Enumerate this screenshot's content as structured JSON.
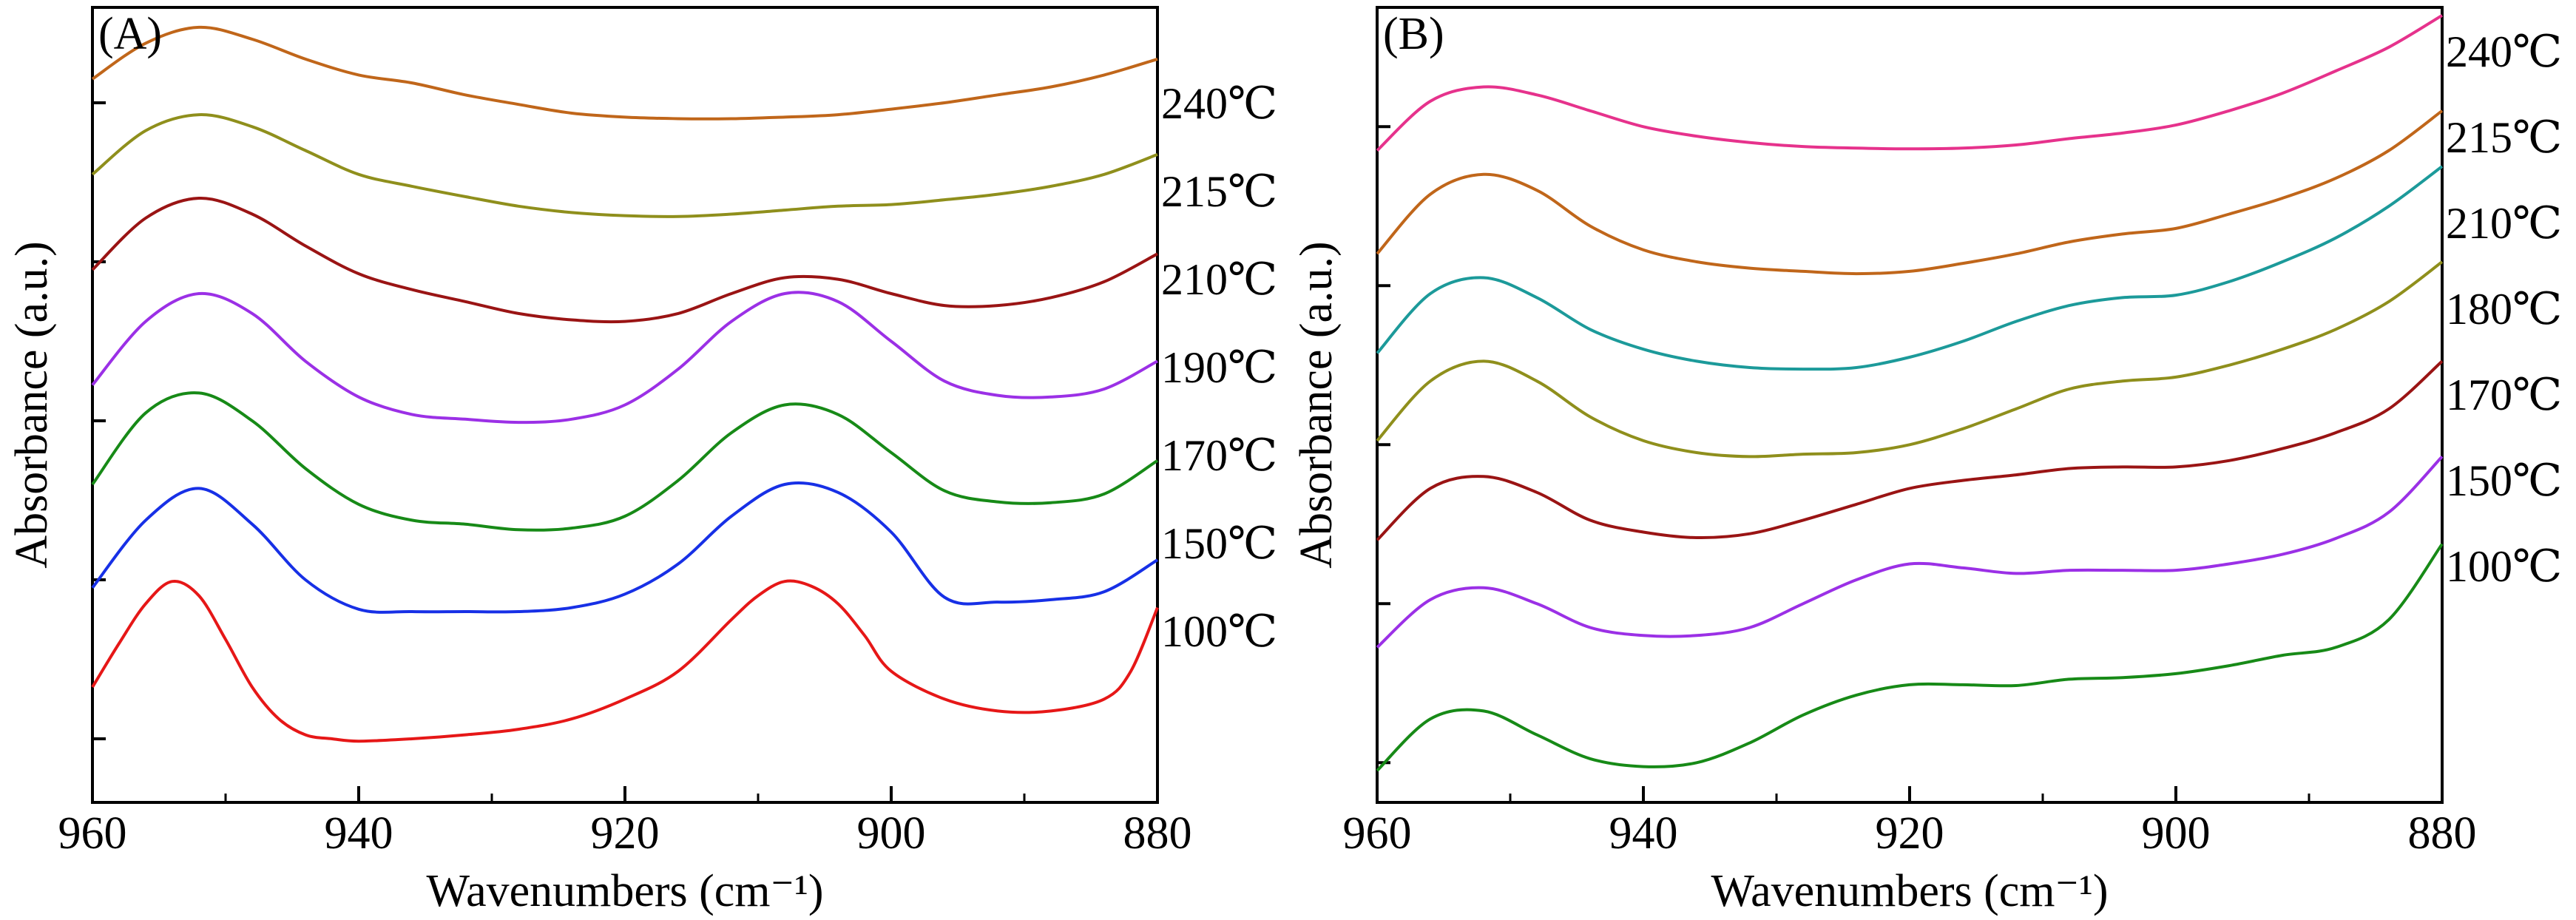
{
  "chart_data": [
    {
      "panel_letter": "(A)",
      "type": "line",
      "xlabel": "Wavenumbers (cm⁻¹)",
      "ylabel": "Absorbance (a.u.)",
      "xlim": [
        960,
        880
      ],
      "x_reversed": true,
      "xticks": [
        960,
        940,
        920,
        900,
        880
      ],
      "ylim": [
        0,
        10
      ],
      "y_units": "arbitrary (stacked offsets)",
      "series": [
        {
          "name": "240℃",
          "color": "#c0661a",
          "x": [
            960,
            956,
            952,
            948,
            944,
            940,
            936,
            932,
            928,
            924,
            920,
            916,
            912,
            908,
            904,
            900,
            896,
            892,
            888,
            884,
            880
          ],
          "y": [
            9.1,
            9.55,
            9.75,
            9.6,
            9.35,
            9.15,
            9.05,
            8.9,
            8.78,
            8.67,
            8.62,
            8.6,
            8.6,
            8.62,
            8.65,
            8.72,
            8.8,
            8.9,
            9.0,
            9.15,
            9.35
          ]
        },
        {
          "name": "215℃",
          "color": "#8f8f1c",
          "x": [
            960,
            956,
            952,
            948,
            944,
            940,
            936,
            932,
            928,
            924,
            920,
            916,
            912,
            908,
            904,
            900,
            896,
            892,
            888,
            884,
            880
          ],
          "y": [
            7.9,
            8.45,
            8.65,
            8.5,
            8.2,
            7.9,
            7.75,
            7.62,
            7.5,
            7.42,
            7.38,
            7.37,
            7.4,
            7.45,
            7.5,
            7.52,
            7.58,
            7.65,
            7.75,
            7.9,
            8.15
          ]
        },
        {
          "name": "210℃",
          "color": "#9a1414",
          "x": [
            960,
            956,
            952,
            948,
            944,
            940,
            936,
            932,
            928,
            924,
            920,
            916,
            912,
            908,
            904,
            900,
            896,
            892,
            888,
            884,
            880
          ],
          "y": [
            6.7,
            7.35,
            7.6,
            7.4,
            7.0,
            6.65,
            6.45,
            6.3,
            6.15,
            6.07,
            6.05,
            6.15,
            6.4,
            6.6,
            6.58,
            6.4,
            6.25,
            6.25,
            6.35,
            6.55,
            6.9
          ]
        },
        {
          "name": "190℃",
          "color": "#9b30e6",
          "x": [
            960,
            956,
            952,
            948,
            944,
            940,
            936,
            932,
            928,
            924,
            920,
            916,
            912,
            908,
            904,
            900,
            896,
            892,
            888,
            884,
            880
          ],
          "y": [
            5.25,
            6.05,
            6.4,
            6.15,
            5.55,
            5.1,
            4.88,
            4.82,
            4.78,
            4.82,
            5.0,
            5.45,
            6.05,
            6.4,
            6.3,
            5.8,
            5.3,
            5.12,
            5.1,
            5.2,
            5.55
          ]
        },
        {
          "name": "170℃",
          "color": "#178a17",
          "x": [
            960,
            956,
            952,
            948,
            944,
            940,
            936,
            932,
            928,
            924,
            920,
            916,
            912,
            908,
            904,
            900,
            896,
            892,
            888,
            884,
            880
          ],
          "y": [
            4.0,
            4.9,
            5.15,
            4.8,
            4.2,
            3.75,
            3.55,
            3.5,
            3.43,
            3.45,
            3.6,
            4.05,
            4.65,
            5.0,
            4.88,
            4.4,
            3.92,
            3.78,
            3.77,
            3.88,
            4.3
          ]
        },
        {
          "name": "150℃",
          "color": "#1730e6",
          "x": [
            960,
            956,
            952,
            948,
            944,
            940,
            936,
            932,
            928,
            924,
            920,
            916,
            912,
            908,
            904,
            900,
            896,
            892,
            888,
            884,
            880
          ],
          "y": [
            2.7,
            3.55,
            3.95,
            3.5,
            2.8,
            2.43,
            2.4,
            2.4,
            2.4,
            2.45,
            2.62,
            3.0,
            3.6,
            4.0,
            3.9,
            3.4,
            2.58,
            2.52,
            2.55,
            2.65,
            3.05
          ]
        },
        {
          "name": "100℃",
          "color": "#e61717",
          "x": [
            960,
            958,
            956,
            954,
            952,
            950,
            948,
            946,
            944,
            942,
            940,
            936,
            932,
            928,
            924,
            920,
            916,
            912,
            910,
            908,
            906,
            904,
            902,
            900,
            896,
            892,
            888,
            884,
            882,
            880
          ],
          "y": [
            1.45,
            2.0,
            2.5,
            2.78,
            2.6,
            2.05,
            1.45,
            1.05,
            0.85,
            0.8,
            0.77,
            0.8,
            0.85,
            0.92,
            1.05,
            1.3,
            1.65,
            2.3,
            2.6,
            2.78,
            2.72,
            2.5,
            2.1,
            1.65,
            1.3,
            1.15,
            1.15,
            1.3,
            1.65,
            2.45
          ]
        }
      ]
    },
    {
      "panel_letter": "(B)",
      "type": "line",
      "xlabel": "Wavenumbers (cm⁻¹)",
      "ylabel": "Absorbance (a.u.)",
      "xlim": [
        960,
        880
      ],
      "x_reversed": true,
      "xticks": [
        960,
        940,
        920,
        900,
        880
      ],
      "ylim": [
        0,
        10
      ],
      "y_units": "arbitrary (stacked offsets)",
      "series": [
        {
          "name": "240℃",
          "color": "#e6328c",
          "x": [
            960,
            956,
            952,
            948,
            944,
            940,
            936,
            932,
            928,
            924,
            920,
            916,
            912,
            908,
            904,
            900,
            896,
            892,
            888,
            884,
            880
          ],
          "y": [
            8.2,
            8.82,
            9.0,
            8.9,
            8.7,
            8.5,
            8.38,
            8.3,
            8.25,
            8.23,
            8.22,
            8.23,
            8.27,
            8.35,
            8.42,
            8.52,
            8.7,
            8.92,
            9.2,
            9.5,
            9.9
          ]
        },
        {
          "name": "215℃",
          "color": "#c0661a",
          "x": [
            960,
            956,
            952,
            948,
            944,
            940,
            936,
            932,
            928,
            924,
            920,
            916,
            912,
            908,
            904,
            900,
            896,
            892,
            888,
            884,
            880
          ],
          "y": [
            6.9,
            7.65,
            7.9,
            7.7,
            7.25,
            6.95,
            6.8,
            6.72,
            6.68,
            6.65,
            6.68,
            6.78,
            6.9,
            7.05,
            7.15,
            7.22,
            7.4,
            7.6,
            7.85,
            8.2,
            8.7
          ]
        },
        {
          "name": "210℃",
          "color": "#1c9a9a",
          "x": [
            960,
            956,
            952,
            948,
            944,
            940,
            936,
            932,
            928,
            924,
            920,
            916,
            912,
            908,
            904,
            900,
            896,
            892,
            888,
            884,
            880
          ],
          "y": [
            5.65,
            6.4,
            6.6,
            6.35,
            5.95,
            5.7,
            5.55,
            5.47,
            5.45,
            5.47,
            5.6,
            5.8,
            6.05,
            6.25,
            6.35,
            6.38,
            6.55,
            6.8,
            7.1,
            7.5,
            8.0
          ]
        },
        {
          "name": "180℃",
          "color": "#8f8f1c",
          "x": [
            960,
            956,
            952,
            948,
            944,
            940,
            936,
            932,
            928,
            924,
            920,
            916,
            912,
            908,
            904,
            900,
            896,
            892,
            888,
            884,
            880
          ],
          "y": [
            4.55,
            5.3,
            5.55,
            5.3,
            4.85,
            4.55,
            4.4,
            4.35,
            4.38,
            4.4,
            4.5,
            4.7,
            4.95,
            5.2,
            5.3,
            5.35,
            5.5,
            5.7,
            5.95,
            6.3,
            6.8
          ]
        },
        {
          "name": "170℃",
          "color": "#9a1414",
          "x": [
            960,
            956,
            952,
            948,
            944,
            940,
            936,
            932,
            928,
            924,
            920,
            916,
            912,
            908,
            904,
            900,
            896,
            892,
            888,
            884,
            880
          ],
          "y": [
            3.3,
            3.95,
            4.1,
            3.9,
            3.55,
            3.4,
            3.33,
            3.38,
            3.55,
            3.75,
            3.95,
            4.05,
            4.12,
            4.2,
            4.22,
            4.22,
            4.3,
            4.45,
            4.65,
            4.95,
            5.55
          ]
        },
        {
          "name": "150℃",
          "color": "#9b30e6",
          "x": [
            960,
            956,
            952,
            948,
            944,
            940,
            936,
            932,
            928,
            924,
            920,
            916,
            912,
            908,
            904,
            900,
            896,
            892,
            888,
            884,
            880
          ],
          "y": [
            1.95,
            2.55,
            2.7,
            2.5,
            2.2,
            2.1,
            2.1,
            2.2,
            2.5,
            2.8,
            3.0,
            2.95,
            2.88,
            2.92,
            2.92,
            2.92,
            3.0,
            3.12,
            3.32,
            3.65,
            4.35
          ]
        },
        {
          "name": "100℃",
          "color": "#178a17",
          "x": [
            960,
            956,
            952,
            948,
            944,
            940,
            936,
            932,
            928,
            924,
            920,
            916,
            912,
            908,
            904,
            900,
            896,
            892,
            888,
            884,
            880
          ],
          "y": [
            0.4,
            1.05,
            1.15,
            0.85,
            0.55,
            0.45,
            0.5,
            0.75,
            1.1,
            1.35,
            1.48,
            1.48,
            1.47,
            1.55,
            1.57,
            1.62,
            1.72,
            1.85,
            1.95,
            2.3,
            3.25
          ]
        }
      ]
    }
  ]
}
